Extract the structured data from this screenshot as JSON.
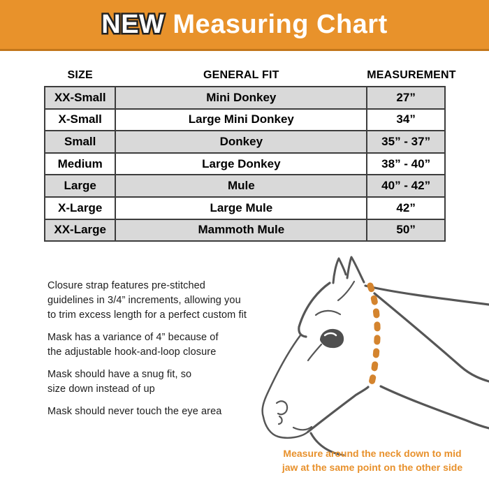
{
  "banner": {
    "badge": "NEW",
    "title": "Measuring Chart",
    "bg_color": "#E8922B",
    "edge_color": "#C2761B",
    "text_color": "#FFFFFF"
  },
  "table": {
    "headers": [
      "SIZE",
      "GENERAL FIT",
      "MEASUREMENT"
    ],
    "rows": [
      {
        "size": "XX-Small",
        "fit": "Mini Donkey",
        "measurement": "27”"
      },
      {
        "size": "X-Small",
        "fit": "Large Mini Donkey",
        "measurement": "34”"
      },
      {
        "size": "Small",
        "fit": "Donkey",
        "measurement": "35” - 37”"
      },
      {
        "size": "Medium",
        "fit": "Large Donkey",
        "measurement": "38” - 40”"
      },
      {
        "size": "Large",
        "fit": "Mule",
        "measurement": "40” - 42”"
      },
      {
        "size": "X-Large",
        "fit": "Large Mule",
        "measurement": "42”"
      },
      {
        "size": "XX-Large",
        "fit": "Mammoth Mule",
        "measurement": "50”"
      }
    ],
    "alt_row_color": "#D9D9D9",
    "border_color": "#3d3d3d"
  },
  "notes": [
    "Closure strap features pre-stitched\nguidelines in 3/4” increments, allowing you\nto trim excess length for a perfect custom fit",
    "Mask has a variance of 4” because of\nthe adjustable hook-and-loop closure",
    "Mask should have a snug fit, so\nsize down instead of up",
    "Mask should never touch the eye area"
  ],
  "illustration": {
    "subject": "horse-head-line-drawing",
    "line_color": "#565656",
    "dash_color": "#D4842E",
    "caption": "Measure around the neck down to mid\njaw at the same point on the other side",
    "caption_color": "#E8912C"
  },
  "chart_data": {
    "type": "table",
    "title": "NEW Measuring Chart",
    "columns": [
      "SIZE",
      "GENERAL FIT",
      "MEASUREMENT"
    ],
    "rows": [
      [
        "XX-Small",
        "Mini Donkey",
        "27”"
      ],
      [
        "X-Small",
        "Large Mini Donkey",
        "34”"
      ],
      [
        "Small",
        "Donkey",
        "35” - 37”"
      ],
      [
        "Medium",
        "Large Donkey",
        "38” - 40”"
      ],
      [
        "Large",
        "Mule",
        "40” - 42”"
      ],
      [
        "X-Large",
        "Large Mule",
        "42”"
      ],
      [
        "XX-Large",
        "Mammoth Mule",
        "50”"
      ]
    ]
  }
}
